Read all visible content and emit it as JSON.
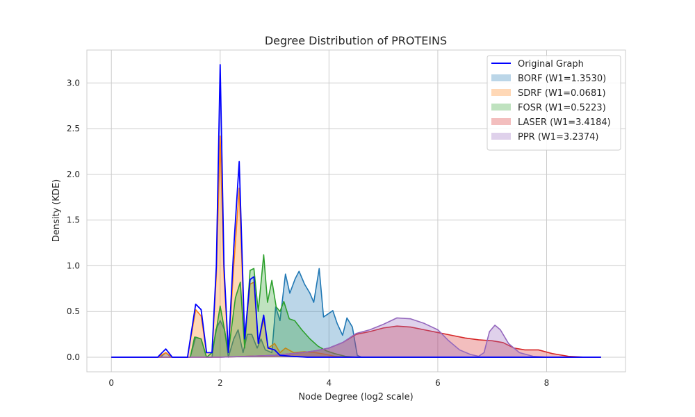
{
  "chart_data": {
    "type": "area",
    "title": "Degree Distribution of PROTEINS",
    "xlabel": "Node Degree (log2 scale)",
    "ylabel": "Density (KDE)",
    "xlim": [
      -0.45,
      9.45
    ],
    "ylim": [
      -0.16,
      3.36
    ],
    "xticks": [
      0,
      2,
      4,
      6,
      8
    ],
    "xtick_labels": [
      "0",
      "2",
      "4",
      "6",
      "8"
    ],
    "yticks": [
      0.0,
      0.5,
      1.0,
      1.5,
      2.0,
      2.5,
      3.0
    ],
    "ytick_labels": [
      "0.0",
      "0.5",
      "1.0",
      "1.5",
      "2.0",
      "2.5",
      "3.0"
    ],
    "grid": true,
    "legend_position": "top-right",
    "series": [
      {
        "name": "BORF (W1=1.3530)",
        "kind": "area",
        "color": "#1f77b4",
        "points": [
          [
            0,
            0
          ],
          [
            0.9,
            0
          ],
          [
            1.0,
            0.05
          ],
          [
            1.1,
            0
          ],
          [
            1.45,
            0
          ],
          [
            1.55,
            0.22
          ],
          [
            1.65,
            0.2
          ],
          [
            1.75,
            0
          ],
          [
            1.85,
            0
          ],
          [
            1.92,
            0.3
          ],
          [
            2.0,
            0.4
          ],
          [
            2.08,
            0.3
          ],
          [
            2.15,
            0
          ],
          [
            2.25,
            0.2
          ],
          [
            2.33,
            0.3
          ],
          [
            2.42,
            0.05
          ],
          [
            2.5,
            0.25
          ],
          [
            2.58,
            0.25
          ],
          [
            2.68,
            0.1
          ],
          [
            2.75,
            0.2
          ],
          [
            2.83,
            0.08
          ],
          [
            2.95,
            0.05
          ],
          [
            3.02,
            0.55
          ],
          [
            3.1,
            0.4
          ],
          [
            3.2,
            0.91
          ],
          [
            3.28,
            0.7
          ],
          [
            3.38,
            0.86
          ],
          [
            3.45,
            0.94
          ],
          [
            3.55,
            0.8
          ],
          [
            3.65,
            0.7
          ],
          [
            3.72,
            0.6
          ],
          [
            3.82,
            0.97
          ],
          [
            3.9,
            0.44
          ],
          [
            4.0,
            0.48
          ],
          [
            4.07,
            0.51
          ],
          [
            4.15,
            0.37
          ],
          [
            4.25,
            0.24
          ],
          [
            4.33,
            0.43
          ],
          [
            4.43,
            0.33
          ],
          [
            4.52,
            0.02
          ],
          [
            4.6,
            0
          ],
          [
            9.0,
            0
          ]
        ]
      },
      {
        "name": "SDRF (W1=0.0681)",
        "kind": "area",
        "color": "#ff7f0e",
        "points": [
          [
            0,
            0
          ],
          [
            0.85,
            0
          ],
          [
            1.0,
            0.05
          ],
          [
            1.12,
            0
          ],
          [
            1.4,
            0
          ],
          [
            1.55,
            0.52
          ],
          [
            1.65,
            0.45
          ],
          [
            1.75,
            0.05
          ],
          [
            1.85,
            0.05
          ],
          [
            1.93,
            0.9
          ],
          [
            2.0,
            2.42
          ],
          [
            2.07,
            0.9
          ],
          [
            2.15,
            0.05
          ],
          [
            2.25,
            1.0
          ],
          [
            2.35,
            1.85
          ],
          [
            2.45,
            0.2
          ],
          [
            2.55,
            0.8
          ],
          [
            2.62,
            0.82
          ],
          [
            2.7,
            0.15
          ],
          [
            2.8,
            0.42
          ],
          [
            2.88,
            0.1
          ],
          [
            3.0,
            0.15
          ],
          [
            3.1,
            0.05
          ],
          [
            3.2,
            0.1
          ],
          [
            3.35,
            0.05
          ],
          [
            3.55,
            0.06
          ],
          [
            3.75,
            0.05
          ],
          [
            3.95,
            0.03
          ],
          [
            4.1,
            0.01
          ],
          [
            4.3,
            0
          ],
          [
            9.0,
            0
          ]
        ]
      },
      {
        "name": "FOSR (W1=0.5223)",
        "kind": "area",
        "color": "#2ca02c",
        "points": [
          [
            0,
            0
          ],
          [
            1.45,
            0
          ],
          [
            1.53,
            0.22
          ],
          [
            1.65,
            0.2
          ],
          [
            1.75,
            0
          ],
          [
            1.85,
            0.05
          ],
          [
            1.93,
            0.3
          ],
          [
            2.0,
            0.56
          ],
          [
            2.08,
            0.3
          ],
          [
            2.15,
            0.05
          ],
          [
            2.28,
            0.65
          ],
          [
            2.37,
            0.82
          ],
          [
            2.45,
            0.1
          ],
          [
            2.55,
            0.95
          ],
          [
            2.62,
            0.97
          ],
          [
            2.7,
            0.5
          ],
          [
            2.8,
            1.12
          ],
          [
            2.87,
            0.6
          ],
          [
            2.95,
            0.84
          ],
          [
            3.03,
            0.55
          ],
          [
            3.1,
            0.5
          ],
          [
            3.17,
            0.61
          ],
          [
            3.27,
            0.42
          ],
          [
            3.37,
            0.4
          ],
          [
            3.5,
            0.3
          ],
          [
            3.65,
            0.2
          ],
          [
            3.8,
            0.12
          ],
          [
            3.95,
            0.07
          ],
          [
            4.1,
            0.04
          ],
          [
            4.3,
            0.01
          ],
          [
            4.5,
            0
          ],
          [
            9.0,
            0
          ]
        ]
      },
      {
        "name": "LASER (W1=3.4184)",
        "kind": "area",
        "color": "#d62728",
        "points": [
          [
            0,
            0
          ],
          [
            1.5,
            0
          ],
          [
            2.0,
            0
          ],
          [
            2.5,
            0.01
          ],
          [
            3.0,
            0.02
          ],
          [
            3.5,
            0.05
          ],
          [
            3.75,
            0.07
          ],
          [
            4.0,
            0.1
          ],
          [
            4.25,
            0.16
          ],
          [
            4.5,
            0.25
          ],
          [
            4.75,
            0.28
          ],
          [
            5.0,
            0.32
          ],
          [
            5.25,
            0.34
          ],
          [
            5.5,
            0.33
          ],
          [
            5.75,
            0.3
          ],
          [
            6.0,
            0.27
          ],
          [
            6.25,
            0.24
          ],
          [
            6.5,
            0.21
          ],
          [
            6.75,
            0.19
          ],
          [
            7.0,
            0.18
          ],
          [
            7.2,
            0.16
          ],
          [
            7.4,
            0.1
          ],
          [
            7.6,
            0.08
          ],
          [
            7.85,
            0.08
          ],
          [
            8.1,
            0.04
          ],
          [
            8.4,
            0.01
          ],
          [
            8.7,
            0
          ],
          [
            9.0,
            0
          ]
        ]
      },
      {
        "name": "PPR (W1=3.2374)",
        "kind": "area",
        "color": "#9467bd",
        "points": [
          [
            0,
            0
          ],
          [
            2.0,
            0
          ],
          [
            2.5,
            0.01
          ],
          [
            3.0,
            0.02
          ],
          [
            3.5,
            0.05
          ],
          [
            3.75,
            0.07
          ],
          [
            4.0,
            0.1
          ],
          [
            4.25,
            0.16
          ],
          [
            4.5,
            0.26
          ],
          [
            4.75,
            0.3
          ],
          [
            5.0,
            0.36
          ],
          [
            5.25,
            0.43
          ],
          [
            5.5,
            0.42
          ],
          [
            5.75,
            0.37
          ],
          [
            6.0,
            0.3
          ],
          [
            6.2,
            0.18
          ],
          [
            6.4,
            0.08
          ],
          [
            6.6,
            0.03
          ],
          [
            6.75,
            0.01
          ],
          [
            6.85,
            0.05
          ],
          [
            6.95,
            0.28
          ],
          [
            7.05,
            0.35
          ],
          [
            7.15,
            0.3
          ],
          [
            7.3,
            0.15
          ],
          [
            7.5,
            0.05
          ],
          [
            7.75,
            0.01
          ],
          [
            8.0,
            0
          ],
          [
            9.0,
            0
          ]
        ]
      },
      {
        "name": "Original Graph",
        "kind": "line",
        "color": "#0000ff",
        "points": [
          [
            0,
            0
          ],
          [
            0.85,
            0
          ],
          [
            1.0,
            0.09
          ],
          [
            1.12,
            0
          ],
          [
            1.4,
            0
          ],
          [
            1.55,
            0.58
          ],
          [
            1.65,
            0.52
          ],
          [
            1.75,
            0.05
          ],
          [
            1.85,
            0.05
          ],
          [
            1.93,
            1.0
          ],
          [
            2.0,
            3.2
          ],
          [
            2.07,
            1.0
          ],
          [
            2.15,
            0.05
          ],
          [
            2.25,
            1.2
          ],
          [
            2.35,
            2.14
          ],
          [
            2.45,
            0.2
          ],
          [
            2.55,
            0.85
          ],
          [
            2.62,
            0.88
          ],
          [
            2.7,
            0.15
          ],
          [
            2.8,
            0.46
          ],
          [
            2.88,
            0.1
          ],
          [
            3.0,
            0.08
          ],
          [
            3.1,
            0.02
          ],
          [
            3.3,
            0.01
          ],
          [
            3.6,
            0
          ],
          [
            9.0,
            0
          ]
        ]
      }
    ]
  }
}
